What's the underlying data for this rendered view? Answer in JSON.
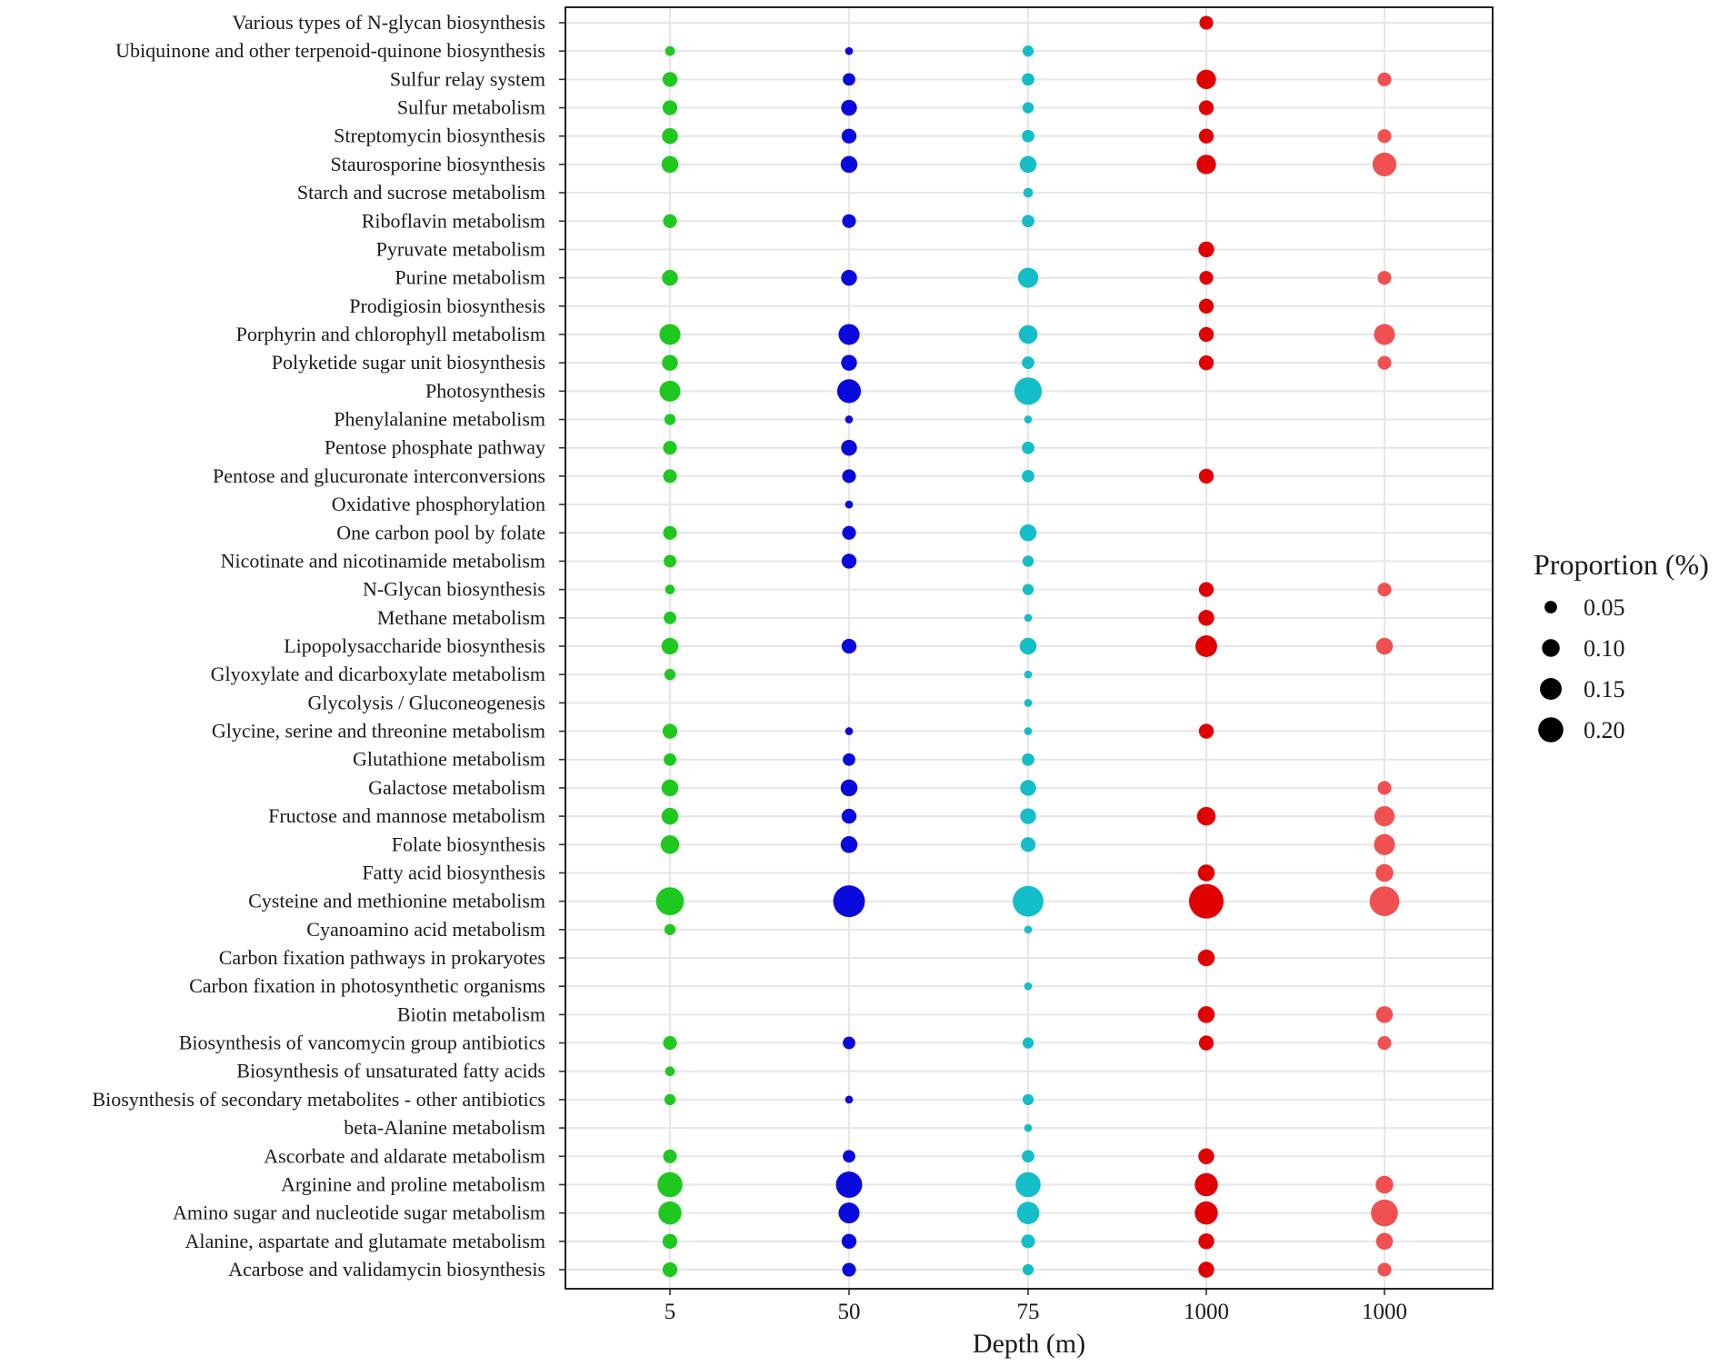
{
  "chart_data": {
    "type": "bubble",
    "xlabel": "Depth (m)",
    "ylabel": "",
    "categories_x": [
      "5",
      "50",
      "75",
      "1000",
      "1000"
    ],
    "categories_y": [
      "Various types of N-glycan biosynthesis",
      "Ubiquinone and other terpenoid-quinone biosynthesis",
      "Sulfur relay system",
      "Sulfur metabolism",
      "Streptomycin biosynthesis",
      "Staurosporine biosynthesis",
      "Starch and sucrose metabolism",
      "Riboflavin metabolism",
      "Pyruvate metabolism",
      "Purine metabolism",
      "Prodigiosin biosynthesis",
      "Porphyrin and chlorophyll metabolism",
      "Polyketide sugar unit biosynthesis",
      "Photosynthesis",
      "Phenylalanine metabolism",
      "Pentose phosphate pathway",
      "Pentose and glucuronate interconversions",
      "Oxidative phosphorylation",
      "One carbon pool by folate",
      "Nicotinate and nicotinamide metabolism",
      "N-Glycan biosynthesis",
      "Methane metabolism",
      "Lipopolysaccharide biosynthesis",
      "Glyoxylate and dicarboxylate metabolism",
      "Glycolysis / Gluconeogenesis",
      "Glycine, serine and threonine metabolism",
      "Glutathione metabolism",
      "Galactose metabolism",
      "Fructose and mannose metabolism",
      "Folate biosynthesis",
      "Fatty acid biosynthesis",
      "Cysteine and methionine metabolism",
      "Cyanoamino acid metabolism",
      "Carbon fixation pathways in prokaryotes",
      "Carbon fixation in photosynthetic organisms",
      "Biotin metabolism",
      "Biosynthesis of vancomycin group antibiotics",
      "Biosynthesis of unsaturated fatty acids",
      "Biosynthesis of secondary metabolites - other antibiotics",
      "beta-Alanine metabolism",
      "Ascorbate and aldarate metabolism",
      "Arginine and proline metabolism",
      "Amino sugar and nucleotide sugar metabolism",
      "Alanine, aspartate and glutamate metabolism",
      "Acarbose and validamycin biosynthesis"
    ],
    "series": [
      {
        "name": "5",
        "color": "#1ec81e",
        "values": [
          null,
          0.03,
          0.07,
          0.07,
          0.08,
          0.09,
          null,
          0.06,
          null,
          0.08,
          null,
          0.14,
          0.08,
          0.14,
          0.04,
          0.06,
          0.06,
          null,
          0.06,
          0.05,
          0.03,
          0.05,
          0.09,
          0.04,
          null,
          0.07,
          0.05,
          0.09,
          0.09,
          0.11,
          null,
          0.25,
          0.04,
          null,
          null,
          null,
          0.06,
          0.03,
          0.04,
          null,
          0.06,
          0.2,
          0.17,
          0.07,
          0.07
        ]
      },
      {
        "name": "50",
        "color": "#0a0adc",
        "values": [
          null,
          0.02,
          0.05,
          0.08,
          0.07,
          0.09,
          null,
          0.06,
          null,
          0.08,
          null,
          0.14,
          0.08,
          0.18,
          0.02,
          0.08,
          0.06,
          0.02,
          0.06,
          0.07,
          null,
          null,
          0.07,
          null,
          null,
          0.02,
          0.05,
          0.09,
          0.07,
          0.09,
          null,
          0.32,
          null,
          null,
          null,
          null,
          0.05,
          null,
          0.02,
          null,
          0.05,
          0.22,
          0.14,
          0.07,
          0.06
        ]
      },
      {
        "name": "75",
        "color": "#14bec8",
        "values": [
          null,
          0.04,
          0.05,
          0.04,
          0.05,
          0.09,
          0.03,
          0.05,
          null,
          0.13,
          null,
          0.11,
          0.05,
          0.24,
          0.02,
          0.05,
          0.05,
          null,
          0.09,
          0.04,
          0.04,
          0.02,
          0.09,
          0.02,
          0.02,
          0.02,
          0.05,
          0.08,
          0.08,
          0.07,
          null,
          0.3,
          0.02,
          null,
          0.02,
          null,
          0.04,
          null,
          0.04,
          0.02,
          0.05,
          0.2,
          0.16,
          0.06,
          0.04
        ]
      },
      {
        "name": "1000",
        "color": "#e00000",
        "values": [
          0.06,
          null,
          0.12,
          0.07,
          0.07,
          0.12,
          null,
          null,
          0.08,
          0.06,
          0.07,
          0.07,
          0.07,
          null,
          null,
          null,
          0.07,
          null,
          null,
          null,
          0.07,
          0.08,
          0.15,
          null,
          null,
          0.07,
          null,
          null,
          0.11,
          null,
          0.09,
          0.38,
          null,
          0.09,
          null,
          0.09,
          0.07,
          null,
          null,
          null,
          0.08,
          0.17,
          0.17,
          0.08,
          0.08
        ]
      },
      {
        "name": "1000",
        "color": "#f05050",
        "values": [
          null,
          null,
          0.06,
          null,
          0.06,
          0.18,
          null,
          null,
          null,
          0.06,
          null,
          0.14,
          0.06,
          null,
          null,
          null,
          null,
          null,
          null,
          null,
          0.06,
          null,
          0.09,
          null,
          null,
          null,
          null,
          0.06,
          0.13,
          0.14,
          0.1,
          0.28,
          null,
          null,
          null,
          0.09,
          0.06,
          null,
          null,
          null,
          null,
          0.1,
          0.23,
          0.09,
          0.06
        ]
      }
    ],
    "size_legend": {
      "title": "Proportion (%)",
      "values": [
        0.05,
        0.1,
        0.15,
        0.2
      ],
      "labels": [
        "0.05",
        "0.10",
        "0.15",
        "0.20"
      ],
      "color": "#000000",
      "position": "right"
    },
    "grid": true
  }
}
